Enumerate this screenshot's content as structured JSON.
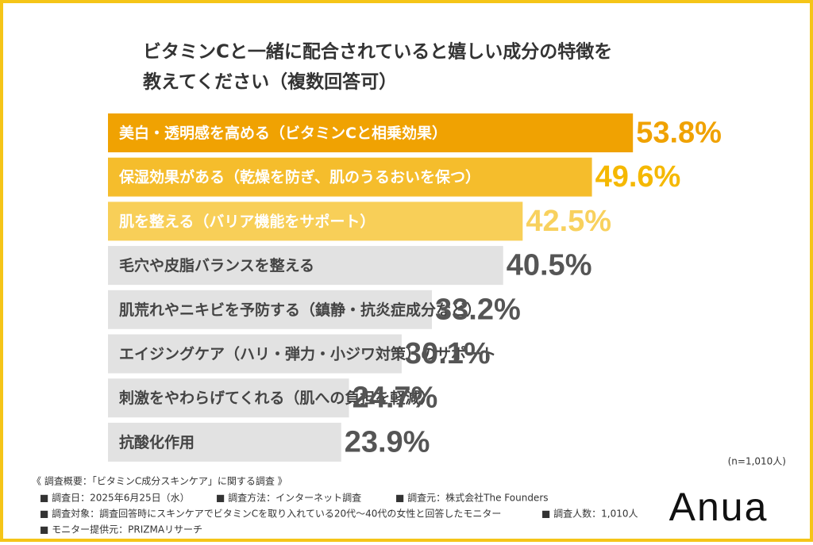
{
  "chart_data": {
    "type": "hbar",
    "title_lines": [
      "ビタミンCと一緒に配合されていると嬉しい成分の特徴を",
      "教えてください（複数回答可）"
    ],
    "categories": [
      "美白・透明感を高める（ビタミンCと相乗効果）",
      "保湿効果がある（乾燥を防ぎ、肌のうるおいを保つ）",
      "肌を整える（バリア機能をサポート）",
      "毛穴や皮脂バランスを整える",
      "肌荒れやニキビを予防する（鎮静・抗炎症成分など）",
      "エイジングケア（ハリ・弾力・小ジワ対策）のサポート",
      "刺激をやわらげてくれる（肌への負担を軽減）",
      "抗酸化作用"
    ],
    "values": [
      53.8,
      49.6,
      42.5,
      40.5,
      33.2,
      30.1,
      24.7,
      23.9
    ],
    "value_labels": [
      "53.8%",
      "49.6%",
      "42.5%",
      "40.5%",
      "33.2%",
      "30.1%",
      "24.7%",
      "23.9%"
    ],
    "colors": [
      "#f0a202",
      "#f5bd2c",
      "#f8cf58",
      "#e2e2e2",
      "#e2e2e2",
      "#e2e2e2",
      "#e2e2e2",
      "#e2e2e2"
    ],
    "category_label_colors": [
      "#ffffff",
      "#ffffff",
      "#ffffff",
      "#444444",
      "#444444",
      "#444444",
      "#444444",
      "#444444"
    ],
    "value_label_colors": [
      "#f0a202",
      "#f5b800",
      "#f8d15e",
      "#555555",
      "#555555",
      "#555555",
      "#555555",
      "#555555"
    ],
    "sample_note": "(n=1,010人)",
    "survey_heading": "《 調査概要：「ビタミンC成分スキンケア」に関する調査 》",
    "notes": [
      [
        "■ 調査日：2025年6月25日（水）",
        "■ 調査方法：インターネット調査",
        "■ 調査元：株式会社The Founders"
      ],
      [
        "■ 調査対象：調査回答時にスキンケアでビタミンCを取り入れている20代〜40代の女性と回答したモニター",
        "■ 調査人数：1,010人"
      ],
      [
        "■ モニター提供元：PRIZMAリサーチ"
      ]
    ],
    "brand": "Anua"
  }
}
